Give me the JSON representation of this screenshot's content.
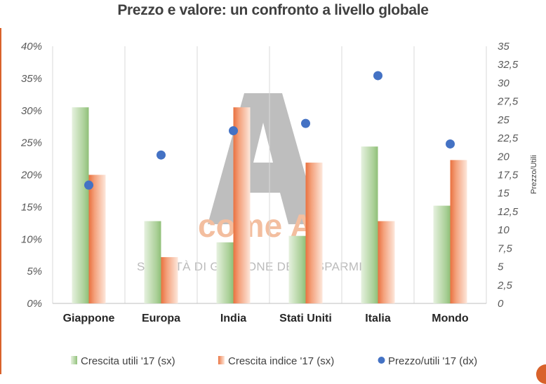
{
  "title": "Prezzo e valore: un confronto a livello globale",
  "watermark": {
    "brand_letter": "A",
    "brand_text": "come A",
    "subtitle": "SOCIETÀ DI GESTIONE DEL RISPARMIO"
  },
  "colors": {
    "green_bar": "#a9cf96",
    "orange_bar": "#f4a27d",
    "dot": "#4472c4",
    "grid": "#d9d9d9",
    "accent": "#d9622b"
  },
  "chart_data": {
    "type": "bar",
    "title": "Prezzo e valore: un confronto a livello globale",
    "categories": [
      "Giappone",
      "Europa",
      "India",
      "Stati Uniti",
      "Italia",
      "Mondo"
    ],
    "series": [
      {
        "name": "Crescita utili '17 (sx)",
        "type": "bar",
        "axis": "left",
        "values": [
          0.305,
          0.128,
          0.095,
          0.105,
          0.244,
          0.152
        ]
      },
      {
        "name": "Crescita indice '17 (sx)",
        "type": "bar",
        "axis": "left",
        "values": [
          0.2,
          0.072,
          0.305,
          0.219,
          0.128,
          0.223
        ]
      },
      {
        "name": "Prezzo/utili '17  (dx)",
        "type": "scatter",
        "axis": "right",
        "values": [
          16.1,
          20.2,
          23.5,
          24.5,
          31.0,
          21.7
        ]
      }
    ],
    "y_left": {
      "ylim": [
        0,
        0.4
      ],
      "ticks": [
        0,
        0.05,
        0.1,
        0.15,
        0.2,
        0.25,
        0.3,
        0.35,
        0.4
      ],
      "tick_labels": [
        "0%",
        "5%",
        "10%",
        "15%",
        "20%",
        "25%",
        "30%",
        "35%",
        "40%"
      ]
    },
    "y_right": {
      "label": "Prezzo/Utili",
      "ylim": [
        0,
        35
      ],
      "ticks": [
        0,
        2.5,
        5,
        7.5,
        10,
        12.5,
        15,
        17.5,
        20,
        22.5,
        25,
        27.5,
        30,
        32.5,
        35
      ],
      "tick_labels": [
        "0",
        "2,5",
        "5",
        "7,5",
        "10",
        "12,5",
        "15",
        "17,5",
        "20",
        "22,5",
        "25",
        "27,5",
        "30",
        "32,5",
        "35"
      ]
    },
    "grid": "vertical separators between categories",
    "legend": "bottom"
  }
}
